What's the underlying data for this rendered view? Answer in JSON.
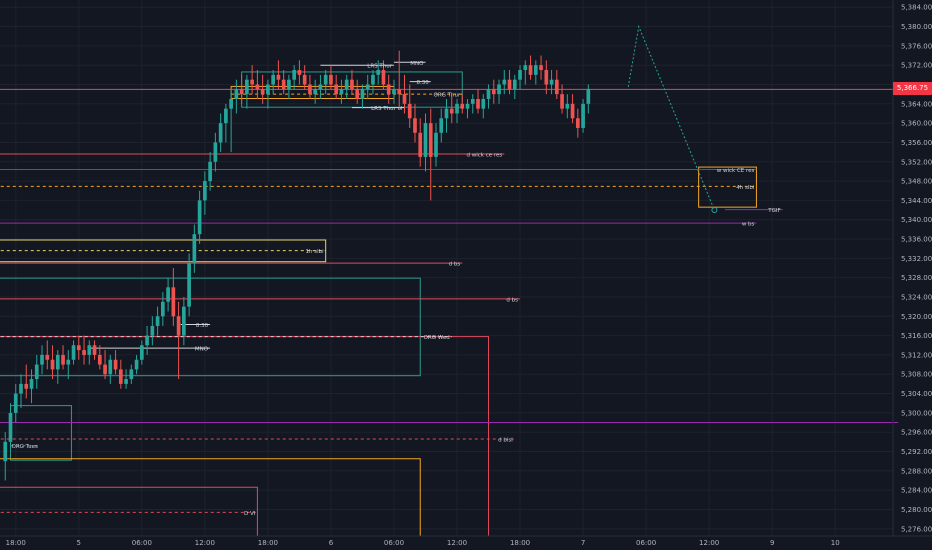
{
  "colors": {
    "background": "#131722",
    "grid": "#1e222d",
    "axis_text": "#b2b5be",
    "up": "#26a69a",
    "down": "#ef5350",
    "red_level": "#e04a5c",
    "purple_level": "#9c27b0",
    "orange_level": "#f5a623",
    "yellow_level": "#e8d36a",
    "teal_box": "#2a9d8f",
    "white_level": "#d1d4dc",
    "projection": "#26a69a",
    "last_price_bg": "#f23645"
  },
  "last_price_label": "5,366.75",
  "chart_data": {
    "type": "candlestick",
    "title": "",
    "y_ticks": [
      "5,384.00",
      "5,380.00",
      "5,376.00",
      "5,372.00",
      "5,368.00",
      "5,364.00",
      "5,360.00",
      "5,356.00",
      "5,352.00",
      "5,348.00",
      "5,344.00",
      "5,340.00",
      "5,336.00",
      "5,332.00",
      "5,328.00",
      "5,324.00",
      "5,320.00",
      "5,316.00",
      "5,312.00",
      "5,308.00",
      "5,304.00",
      "5,300.00",
      "5,296.00",
      "5,292.00",
      "5,288.00",
      "5,284.00",
      "5,280.00",
      "5,276.00"
    ],
    "y_tick_values": [
      5384,
      5380,
      5376,
      5372,
      5368,
      5364,
      5360,
      5356,
      5352,
      5348,
      5344,
      5340,
      5336,
      5332,
      5328,
      5324,
      5320,
      5316,
      5312,
      5308,
      5304,
      5300,
      5296,
      5292,
      5288,
      5284,
      5280,
      5276
    ],
    "x_ticks": [
      "18:00",
      "5",
      "06:00",
      "12:00",
      "18:00",
      "6",
      "06:00",
      "12:00",
      "18:00",
      "7",
      "06:00",
      "12:00",
      "9",
      "10"
    ],
    "x_tick_hours": [
      0,
      6,
      12,
      18,
      24,
      30,
      36,
      42,
      48,
      54,
      60,
      66,
      72,
      78
    ],
    "ylim": [
      5274.5,
      5385.5
    ],
    "xlim": [
      -1.5,
      83.5
    ],
    "levels": [
      {
        "label": "d wick ce res",
        "price": 5353.6,
        "x_from": -2,
        "x_to": 46.5,
        "color": "red_level",
        "style": "solid"
      },
      {
        "label": "w wick CE res",
        "price": 5350.4,
        "x_from": -2,
        "x_to": 70.5,
        "color": "purple_level",
        "style": "solid"
      },
      {
        "label": "4h slbi",
        "price": 5346.9,
        "x_from": -2,
        "x_to": 70.5,
        "color": "orange_level",
        "style": "dashed"
      },
      {
        "label": "TGIF",
        "price": 5342.1,
        "x_from": 67.5,
        "x_to": 73.0,
        "color": "purple_level",
        "style": "solid"
      },
      {
        "label": "w bs",
        "price": 5339.3,
        "x_from": -2,
        "x_to": 70.5,
        "color": "purple_level",
        "style": "solid"
      },
      {
        "label": "1h slbi",
        "price": 5333.6,
        "x_from": -2,
        "x_to": 29.5,
        "color": "yellow_level",
        "style": "dashed"
      },
      {
        "label": "d bs",
        "price": 5331.0,
        "x_from": -2,
        "x_to": 42.5,
        "color": "red_level",
        "style": "solid"
      },
      {
        "label": "d bs",
        "price": 5323.6,
        "x_from": -2,
        "x_to": 48.0,
        "color": "red_level",
        "style": "solid"
      },
      {
        "label": "8.30",
        "price": 5318.3,
        "x_from": 15.7,
        "x_to": 18.5,
        "color": "white_level",
        "style": "solid"
      },
      {
        "label": "ORG Wed",
        "price": 5315.8,
        "x_from": -2,
        "x_to": 41.5,
        "color": "white_level",
        "style": "dashed"
      },
      {
        "label": "MNO",
        "price": 5313.4,
        "x_from": 7.0,
        "x_to": 18.5,
        "color": "white_level",
        "style": "solid"
      },
      {
        "label": "d bisi",
        "price": 5294.6,
        "x_from": -2,
        "x_to": 47.5,
        "color": "red_level",
        "style": "dashed"
      },
      {
        "label": "ORG Tues",
        "price": 5293.2,
        "x_from": -0.5,
        "x_to": 2.3,
        "color": "teal_box",
        "style": "dashed"
      },
      {
        "label": "D VI",
        "price": 5279.4,
        "x_from": -2,
        "x_to": 23.0,
        "color": "red_level",
        "style": "dashed"
      },
      {
        "label": "ORG Thur",
        "price": 5366.0,
        "x_from": 20.5,
        "x_to": 42.5,
        "color": "orange_level",
        "style": "dashed"
      },
      {
        "label": "8.30",
        "price": 5368.6,
        "x_from": 37.5,
        "x_to": 39.5,
        "color": "white_level",
        "style": "solid"
      },
      {
        "label": "MNO",
        "price": 5372.6,
        "x_from": 36.0,
        "x_to": 39.0,
        "color": "white_level",
        "style": "solid"
      },
      {
        "label": "LRS Thur",
        "price": 5372.0,
        "x_from": 29.0,
        "x_to": 36.0,
        "color": "white_level",
        "style": "solid"
      },
      {
        "label": "LRS Thur ol",
        "price": 5363.2,
        "x_from": 32.0,
        "x_to": 37.0,
        "color": "white_level",
        "style": "solid"
      },
      {
        "label": "",
        "price": 5298.0,
        "x_from": -2,
        "x_to": 84,
        "color": "purple_level",
        "style": "solid"
      },
      {
        "label": "",
        "price": 5367.0,
        "x_from": -2,
        "x_to": 84,
        "color": "red_level",
        "style": "solid"
      }
    ],
    "boxes": [
      {
        "x_from": 65.0,
        "x_to": 70.5,
        "price_top": 5350.9,
        "price_bottom": 5342.6,
        "color": "orange_level"
      },
      {
        "x_from": -2,
        "x_to": 29.5,
        "price_top": 5335.8,
        "price_bottom": 5331.3,
        "color": "yellow_level"
      },
      {
        "x_from": -2,
        "x_to": 38.5,
        "price_top": 5327.9,
        "price_bottom": 5307.7,
        "color": "teal_box"
      },
      {
        "x_from": -0.5,
        "x_to": 5.3,
        "price_top": 5301.5,
        "price_bottom": 5290.2,
        "color": "teal_box"
      },
      {
        "x_from": 21.5,
        "x_to": 42.5,
        "price_top": 5370.6,
        "price_bottom": 5363.3,
        "color": "teal_box"
      },
      {
        "x_from": 20.5,
        "x_to": 36.0,
        "price_top": 5367.6,
        "price_bottom": 5365.1,
        "color": "orange_level"
      }
    ],
    "brackets": [
      {
        "x_from": -2,
        "x_to": 45.0,
        "price_top": 5315.8,
        "price_bottom": 5274.5,
        "color": "red_level"
      },
      {
        "x_from": -2,
        "x_to": 38.5,
        "price_top": 5290.5,
        "price_bottom": 5274.5,
        "color": "orange_level"
      },
      {
        "x_from": -2,
        "x_to": 23.0,
        "price_top": 5284.6,
        "price_bottom": 5274.5,
        "color": "red_level"
      }
    ],
    "projection": [
      [
        58.3,
        5367.5
      ],
      [
        59.3,
        5380.0
      ],
      [
        66.5,
        5342.0
      ]
    ],
    "candles": [
      [
        -1.0,
        5290,
        5296,
        5286,
        5294
      ],
      [
        -0.5,
        5294,
        5302,
        5292,
        5300
      ],
      [
        0.0,
        5300,
        5306,
        5298,
        5304
      ],
      [
        0.5,
        5304,
        5308,
        5301,
        5306
      ],
      [
        1.0,
        5306,
        5310,
        5303,
        5305
      ],
      [
        1.5,
        5305,
        5309,
        5302,
        5307
      ],
      [
        2.0,
        5307,
        5312,
        5305,
        5310
      ],
      [
        2.5,
        5310,
        5314,
        5308,
        5312
      ],
      [
        3.0,
        5312,
        5315,
        5309,
        5311
      ],
      [
        3.5,
        5311,
        5314,
        5307,
        5309
      ],
      [
        4.0,
        5309,
        5313,
        5306,
        5312
      ],
      [
        4.5,
        5312,
        5314,
        5309,
        5310
      ],
      [
        5.0,
        5310,
        5313,
        5307,
        5311
      ],
      [
        5.5,
        5311,
        5315,
        5310,
        5314
      ],
      [
        6.0,
        5314,
        5316,
        5311,
        5313
      ],
      [
        6.5,
        5313,
        5316,
        5310,
        5312
      ],
      [
        7.0,
        5312,
        5315,
        5310,
        5314
      ],
      [
        7.5,
        5314,
        5315,
        5311,
        5312
      ],
      [
        8.0,
        5312,
        5314,
        5309,
        5310
      ],
      [
        8.5,
        5310,
        5313,
        5307,
        5308
      ],
      [
        9.0,
        5308,
        5312,
        5306,
        5311
      ],
      [
        9.5,
        5311,
        5313,
        5308,
        5309
      ],
      [
        10.0,
        5309,
        5311,
        5305,
        5306
      ],
      [
        10.5,
        5306,
        5309,
        5305,
        5307
      ],
      [
        11.0,
        5307,
        5310,
        5306,
        5309
      ],
      [
        11.5,
        5309,
        5312,
        5308,
        5311
      ],
      [
        12.0,
        5311,
        5315,
        5310,
        5314
      ],
      [
        12.5,
        5314,
        5318,
        5312,
        5316
      ],
      [
        13.0,
        5316,
        5320,
        5314,
        5318
      ],
      [
        13.5,
        5318,
        5322,
        5316,
        5320
      ],
      [
        14.0,
        5320,
        5325,
        5318,
        5323
      ],
      [
        14.5,
        5323,
        5328,
        5321,
        5326
      ],
      [
        15.0,
        5326,
        5330,
        5318,
        5320
      ],
      [
        15.5,
        5320,
        5323,
        5307,
        5316
      ],
      [
        16.0,
        5316,
        5324,
        5314,
        5322
      ],
      [
        16.5,
        5322,
        5333,
        5320,
        5331
      ],
      [
        17.0,
        5331,
        5339,
        5329,
        5337
      ],
      [
        17.5,
        5337,
        5346,
        5335,
        5344
      ],
      [
        18.0,
        5344,
        5350,
        5341,
        5348
      ],
      [
        18.5,
        5348,
        5354,
        5346,
        5352
      ],
      [
        19.0,
        5352,
        5358,
        5350,
        5356
      ],
      [
        19.5,
        5356,
        5362,
        5354,
        5360
      ],
      [
        20.0,
        5360,
        5364,
        5356,
        5363
      ],
      [
        20.5,
        5363,
        5367,
        5354,
        5365
      ],
      [
        21.0,
        5365,
        5369,
        5362,
        5367
      ],
      [
        21.5,
        5367,
        5370,
        5364,
        5366
      ],
      [
        22.0,
        5366,
        5370,
        5363,
        5369
      ],
      [
        22.5,
        5369,
        5372,
        5366,
        5368
      ],
      [
        23.0,
        5368,
        5371,
        5365,
        5367
      ],
      [
        23.5,
        5367,
        5370,
        5364,
        5366
      ],
      [
        24.0,
        5366,
        5369,
        5363,
        5368
      ],
      [
        24.5,
        5368,
        5371,
        5366,
        5370
      ],
      [
        25.0,
        5370,
        5373,
        5367,
        5369
      ],
      [
        25.5,
        5369,
        5371,
        5366,
        5367
      ],
      [
        26.0,
        5367,
        5370,
        5365,
        5369
      ],
      [
        26.5,
        5369,
        5372,
        5367,
        5371
      ],
      [
        27.0,
        5371,
        5373,
        5368,
        5370
      ],
      [
        27.5,
        5370,
        5372,
        5367,
        5368
      ],
      [
        28.0,
        5368,
        5370,
        5365,
        5366
      ],
      [
        28.5,
        5366,
        5369,
        5364,
        5367
      ],
      [
        29.0,
        5367,
        5370,
        5365,
        5368
      ],
      [
        29.5,
        5368,
        5371,
        5366,
        5370
      ],
      [
        30.0,
        5370,
        5372,
        5367,
        5368
      ],
      [
        30.5,
        5368,
        5370,
        5365,
        5366
      ],
      [
        31.0,
        5366,
        5369,
        5364,
        5367
      ],
      [
        31.5,
        5367,
        5370,
        5365,
        5369
      ],
      [
        32.0,
        5369,
        5371,
        5366,
        5367
      ],
      [
        32.5,
        5367,
        5369,
        5364,
        5365
      ],
      [
        33.0,
        5365,
        5368,
        5363,
        5367
      ],
      [
        33.5,
        5367,
        5370,
        5365,
        5368
      ],
      [
        34.0,
        5368,
        5371,
        5366,
        5370
      ],
      [
        34.5,
        5370,
        5373,
        5368,
        5371
      ],
      [
        35.0,
        5371,
        5373,
        5367,
        5368
      ],
      [
        35.5,
        5368,
        5370,
        5364,
        5366
      ],
      [
        36.0,
        5366,
        5369,
        5364,
        5367
      ],
      [
        36.5,
        5367,
        5375,
        5363,
        5366
      ],
      [
        37.0,
        5366,
        5370,
        5362,
        5364
      ],
      [
        37.5,
        5364,
        5368,
        5359,
        5361
      ],
      [
        38.0,
        5361,
        5364,
        5356,
        5358
      ],
      [
        38.5,
        5358,
        5361,
        5351,
        5353
      ],
      [
        39.0,
        5353,
        5362,
        5350,
        5360
      ],
      [
        39.5,
        5360,
        5363,
        5344,
        5353
      ],
      [
        40.0,
        5353,
        5360,
        5351,
        5358
      ],
      [
        40.5,
        5358,
        5363,
        5356,
        5361
      ],
      [
        41.0,
        5361,
        5365,
        5358,
        5363
      ],
      [
        41.5,
        5363,
        5366,
        5360,
        5362
      ],
      [
        42.0,
        5362,
        5365,
        5360,
        5364
      ],
      [
        42.5,
        5364,
        5366,
        5362,
        5363
      ],
      [
        43.0,
        5363,
        5365,
        5361,
        5364
      ],
      [
        43.5,
        5364,
        5366,
        5362,
        5365
      ],
      [
        44.0,
        5365,
        5367,
        5362,
        5363
      ],
      [
        44.5,
        5363,
        5366,
        5361,
        5365
      ],
      [
        45.0,
        5365,
        5368,
        5363,
        5367
      ],
      [
        45.5,
        5367,
        5369,
        5364,
        5366
      ],
      [
        46.0,
        5366,
        5369,
        5364,
        5368
      ],
      [
        46.5,
        5368,
        5371,
        5366,
        5369
      ],
      [
        47.0,
        5369,
        5371,
        5366,
        5367
      ],
      [
        47.5,
        5367,
        5370,
        5365,
        5369
      ],
      [
        48.0,
        5369,
        5372,
        5367,
        5371
      ],
      [
        48.5,
        5371,
        5373,
        5368,
        5372
      ],
      [
        49.0,
        5372,
        5374,
        5369,
        5370
      ],
      [
        49.5,
        5370,
        5373,
        5368,
        5372
      ],
      [
        50.0,
        5372,
        5374,
        5369,
        5371
      ],
      [
        50.5,
        5371,
        5373,
        5366,
        5368
      ],
      [
        51.0,
        5368,
        5371,
        5366,
        5369
      ],
      [
        51.5,
        5369,
        5371,
        5365,
        5366
      ],
      [
        52.0,
        5366,
        5368,
        5362,
        5363
      ],
      [
        52.5,
        5363,
        5366,
        5361,
        5364
      ],
      [
        53.0,
        5364,
        5366,
        5360,
        5361
      ],
      [
        53.5,
        5361,
        5363,
        5357,
        5359
      ],
      [
        54.0,
        5359,
        5365,
        5358,
        5364
      ],
      [
        54.5,
        5364,
        5368,
        5362,
        5367
      ]
    ]
  }
}
